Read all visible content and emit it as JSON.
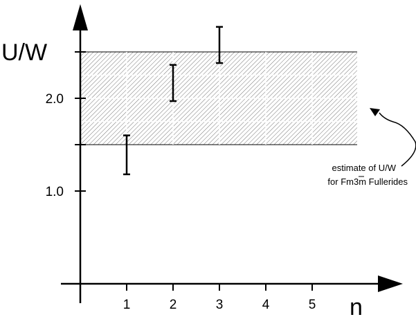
{
  "chart_data": {
    "type": "scatter",
    "xlabel": "n",
    "ylabel": "U/W",
    "x_ticks": [
      "1",
      "2",
      "3",
      "4",
      "5"
    ],
    "y_ticks": [
      {
        "value": 1.0,
        "label": "1.0"
      },
      {
        "value": 1.5,
        "label": ""
      },
      {
        "value": 2.0,
        "label": "2.0"
      },
      {
        "value": 2.5,
        "label": ""
      }
    ],
    "xlim": [
      0,
      6
    ],
    "ylim": [
      0,
      3
    ],
    "series": [
      {
        "points": [
          {
            "x": 1,
            "y": 1.39,
            "ymin": 1.18,
            "ymax": 1.6
          },
          {
            "x": 2,
            "y": 2.16,
            "ymin": 1.97,
            "ymax": 2.36
          },
          {
            "x": 3,
            "y": 2.57,
            "ymin": 2.38,
            "ymax": 2.77
          }
        ]
      }
    ],
    "shaded_band": {
      "ymin": 1.5,
      "ymax": 2.5,
      "xmin": 0,
      "xmax": 6,
      "pattern": "diagonal-hatch"
    },
    "annotation": {
      "lines": [
        "estimate of U/W",
        "for Fm3m Fullerides"
      ],
      "target": "shaded_band"
    }
  }
}
